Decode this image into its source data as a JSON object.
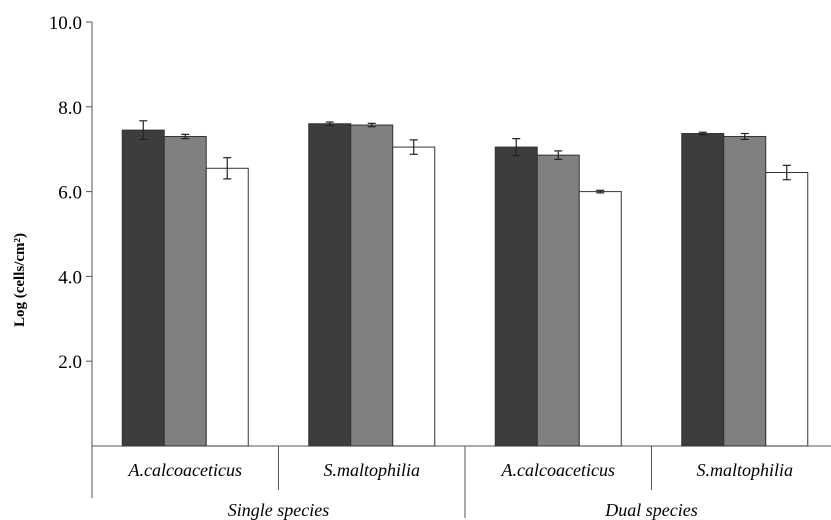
{
  "chart_data": {
    "type": "bar",
    "ylabel": "Log (cells/cm²)",
    "ylim": [
      0,
      10
    ],
    "yticks": [
      "2.0",
      "4.0",
      "6.0",
      "8.0",
      "10.0"
    ],
    "categories": [
      "A.calcoaceticus",
      "S.maltophilia",
      "A.calcoaceticus",
      "S.maltophilia"
    ],
    "groups": [
      {
        "label": "Single species",
        "categories": [
          0,
          1
        ]
      },
      {
        "label": "Dual species",
        "categories": [
          2,
          3
        ]
      }
    ],
    "series": [
      {
        "color": "#3d3d3d",
        "values": [
          7.45,
          7.6,
          7.05,
          7.37
        ],
        "errors": [
          0.22,
          0.04,
          0.2,
          0.03
        ]
      },
      {
        "color": "#808080",
        "values": [
          7.3,
          7.57,
          6.86,
          7.3
        ],
        "errors": [
          0.05,
          0.04,
          0.1,
          0.07
        ]
      },
      {
        "color": "#ffffff",
        "values": [
          6.55,
          7.05,
          6.0,
          6.45
        ],
        "errors": [
          0.25,
          0.17,
          0.03,
          0.17
        ]
      }
    ],
    "grid": false,
    "legend": "none"
  }
}
